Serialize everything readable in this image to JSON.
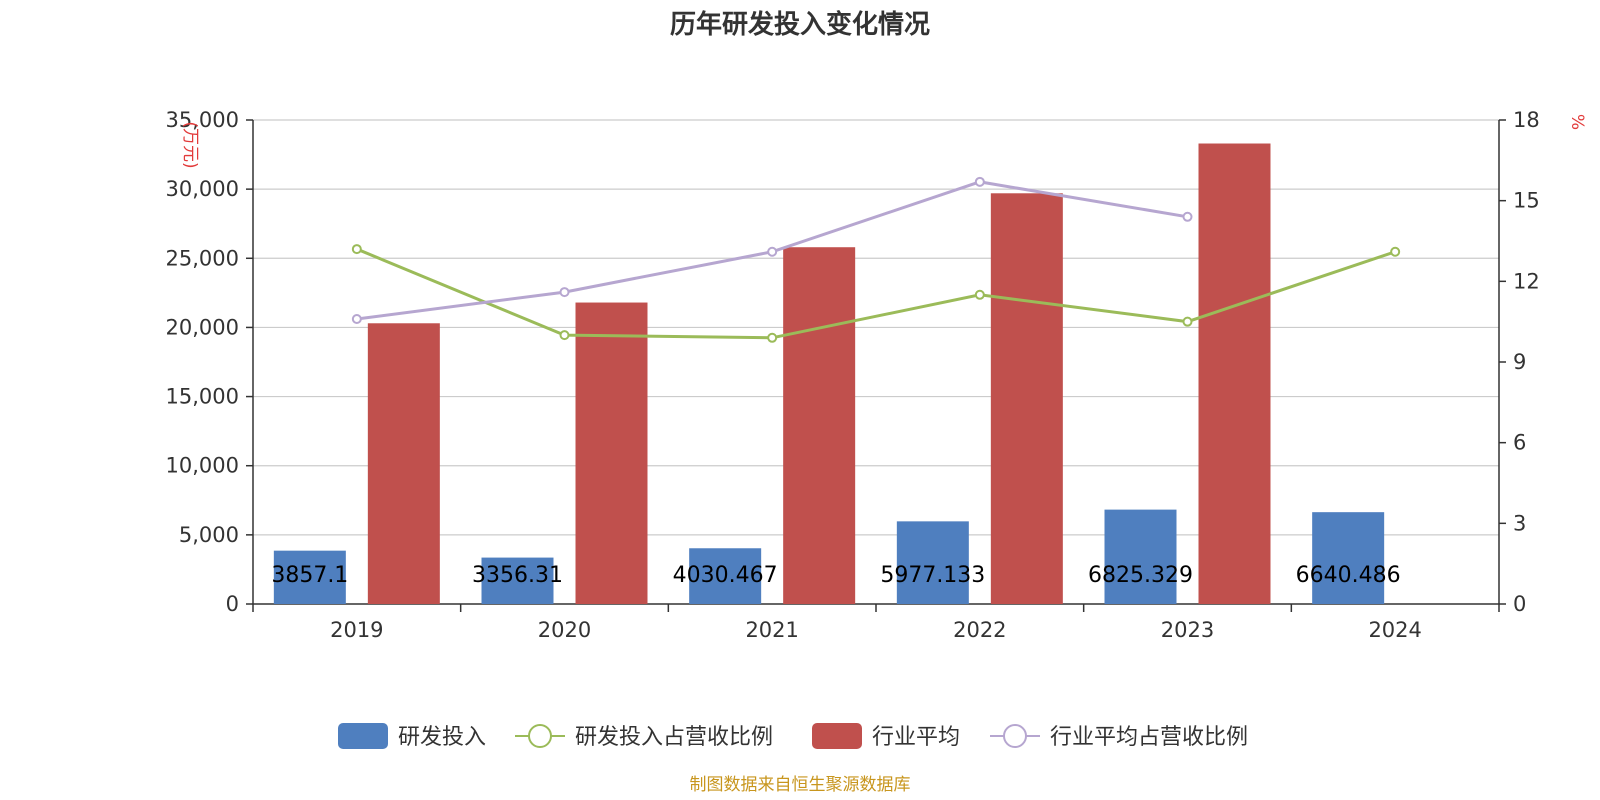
{
  "chart_data": {
    "type": "bar",
    "title": "历年研发投入变化情况",
    "categories": [
      "2019",
      "2020",
      "2021",
      "2022",
      "2023",
      "2024"
    ],
    "series": [
      {
        "name": "研发投入",
        "kind": "bar",
        "axis": "left",
        "color": "#4f7fbf",
        "values": [
          3857.1,
          3356.31,
          4030.467,
          5977.133,
          6825.329,
          6640.486
        ],
        "labels": [
          "3857.1",
          "3356.31",
          "4030.467",
          "5977.133",
          "6825.329",
          "6640.486"
        ]
      },
      {
        "name": "研发投入占营收比例",
        "kind": "line",
        "axis": "right",
        "color": "#9bbb59",
        "values": [
          13.2,
          10.0,
          9.9,
          11.5,
          10.5,
          13.1
        ]
      },
      {
        "name": "行业平均",
        "kind": "bar",
        "axis": "left",
        "color": "#c0504d",
        "values": [
          20300,
          21800,
          25800,
          29700,
          33300,
          null
        ]
      },
      {
        "name": "行业平均占营收比例",
        "kind": "line",
        "axis": "right",
        "color": "#b6a6d0",
        "values": [
          10.6,
          11.6,
          13.1,
          15.7,
          14.4,
          null
        ]
      }
    ],
    "y_left": {
      "label": "万元",
      "ylim": [
        0,
        35000
      ],
      "ticks": [
        "0",
        "5,000",
        "10,000",
        "15,000",
        "20,000",
        "25,000",
        "30,000",
        "35,000"
      ]
    },
    "y_right": {
      "label": "%",
      "ylim": [
        0,
        18
      ],
      "ticks": [
        "0",
        "3",
        "6",
        "9",
        "12",
        "15",
        "18"
      ]
    },
    "legend_position": "bottom",
    "grid": true
  },
  "footer": {
    "source": "制图数据来自恒生聚源数据库"
  }
}
